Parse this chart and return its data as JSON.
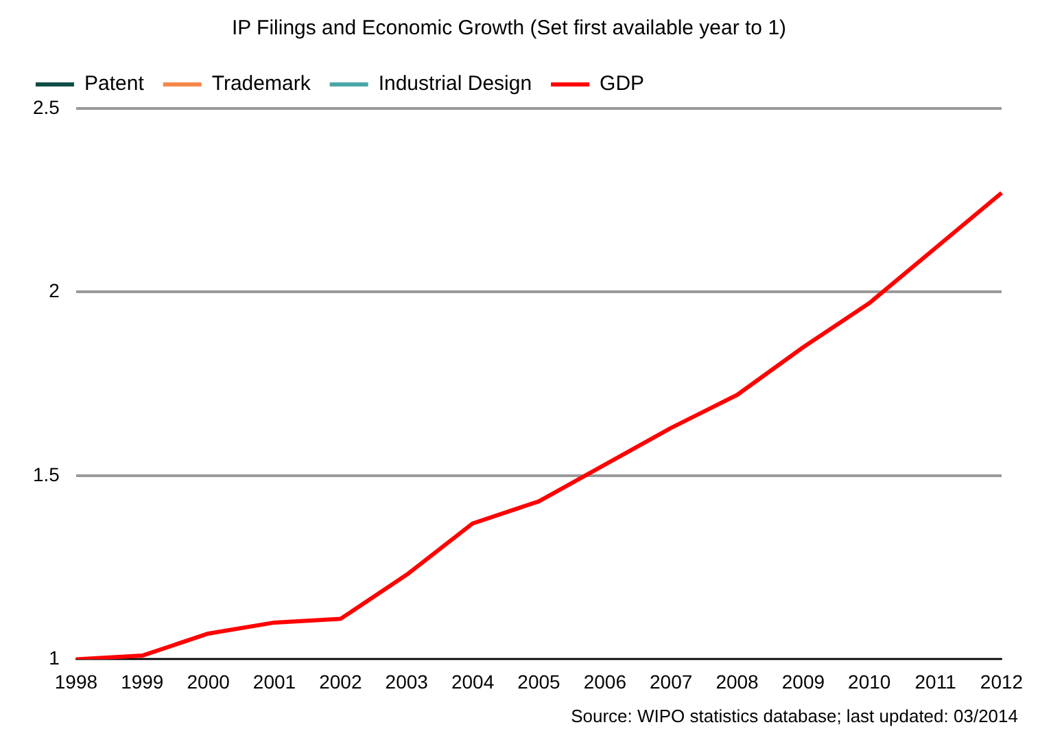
{
  "chart_data": {
    "type": "line",
    "title": "IP Filings and Economic Growth (Set first available year to 1)",
    "categories": [
      "1998",
      "1999",
      "2000",
      "2001",
      "2002",
      "2003",
      "2004",
      "2005",
      "2006",
      "2007",
      "2008",
      "2009",
      "2010",
      "2011",
      "2012"
    ],
    "series": [
      {
        "name": "Patent",
        "color": "#0f4d45",
        "values": [
          null,
          null,
          null,
          null,
          null,
          null,
          null,
          null,
          null,
          null,
          null,
          null,
          null,
          null,
          null
        ]
      },
      {
        "name": "Trademark",
        "color": "#f5884a",
        "values": [
          null,
          null,
          null,
          null,
          null,
          null,
          null,
          null,
          null,
          null,
          null,
          null,
          null,
          null,
          null
        ]
      },
      {
        "name": "Industrial Design",
        "color": "#4aa6a6",
        "values": [
          null,
          null,
          null,
          null,
          null,
          null,
          null,
          null,
          null,
          null,
          null,
          null,
          null,
          null,
          null
        ]
      },
      {
        "name": "GDP",
        "color": "#ff0000",
        "values": [
          1.0,
          1.01,
          1.07,
          1.1,
          1.11,
          1.23,
          1.37,
          1.43,
          1.53,
          1.63,
          1.72,
          1.85,
          1.97,
          2.12,
          2.27
        ]
      }
    ],
    "ylim": [
      1,
      2.5
    ],
    "yticks": [
      1,
      1.5,
      2,
      2.5
    ],
    "grid": "y",
    "legend": "top",
    "marker": "none",
    "line_style": "solid",
    "annotations": [
      "Source: WIPO statistics database; last updated: 03/2014"
    ]
  }
}
